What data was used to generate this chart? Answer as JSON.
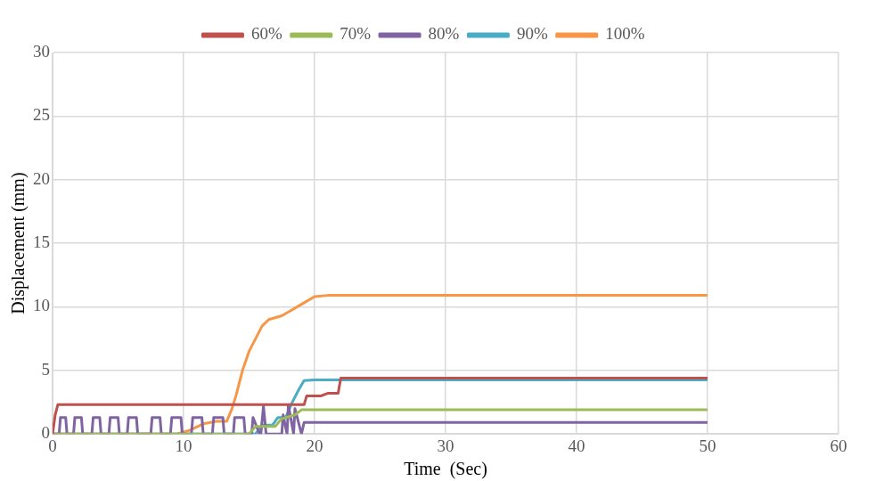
{
  "chart_data": {
    "type": "line",
    "xlabel": "Time  (Sec)",
    "ylabel": "Displacement (mm)",
    "xlim": [
      0,
      60
    ],
    "xticks": [
      0,
      10,
      20,
      30,
      40,
      50,
      60
    ],
    "ylim": [
      0,
      30
    ],
    "yticks": [
      0,
      5,
      10,
      15,
      20,
      25,
      30
    ],
    "grid": true,
    "legend": "top",
    "marker": "none",
    "line_style": "solid",
    "series": [
      {
        "name": "60%",
        "color": "#c0504d",
        "x": [
          0,
          0.2,
          0.4,
          5,
          10,
          15,
          19.2,
          19.4,
          20.5,
          21,
          21.5,
          21.8,
          22,
          50
        ],
        "values": [
          0,
          1.5,
          2.3,
          2.3,
          2.3,
          2.3,
          2.3,
          3,
          3,
          3.2,
          3.2,
          3.2,
          4.4,
          4.4
        ]
      },
      {
        "name": "70%",
        "color": "#9bbb59",
        "x": [
          0,
          15,
          15.5,
          17,
          17.5,
          18.5,
          19,
          50
        ],
        "values": [
          0,
          0,
          0.6,
          0.6,
          1.2,
          1.5,
          1.9,
          1.9
        ]
      },
      {
        "name": "80%",
        "color": "#8064a2",
        "x": [
          0,
          0.5,
          0.6,
          1,
          1.1,
          1.6,
          1.7,
          2.2,
          2.3,
          3,
          3.1,
          3.6,
          3.7,
          4.3,
          4.4,
          5,
          5.1,
          5.7,
          5.8,
          6.4,
          6.5,
          7.5,
          7.6,
          8.2,
          8.3,
          9,
          9.1,
          9.8,
          9.9,
          10.6,
          10.7,
          11.4,
          11.5,
          12.2,
          12.3,
          13,
          13.1,
          13.8,
          13.9,
          14.6,
          14.7,
          15.2,
          15.3,
          15.8,
          15.9,
          16.1,
          16.3,
          17.5,
          17.6,
          17.9,
          18,
          18.4,
          18.5,
          19,
          19.2,
          50
        ],
        "values": [
          0,
          0,
          1.3,
          1.3,
          0,
          0,
          1.3,
          1.3,
          0,
          0,
          1.3,
          1.3,
          0,
          0,
          1.3,
          1.3,
          0,
          0,
          1.3,
          1.3,
          0,
          0,
          1.3,
          1.3,
          0,
          0,
          1.3,
          1.3,
          0,
          0,
          1.3,
          1.3,
          0,
          0,
          1.3,
          1.3,
          0,
          0,
          1.3,
          1.3,
          0,
          0,
          1.3,
          0,
          0,
          2.2,
          0,
          0,
          1.5,
          0,
          2.3,
          0,
          2,
          0,
          0.9,
          0.9
        ]
      },
      {
        "name": "90%",
        "color": "#4bacc6",
        "x": [
          0,
          15.5,
          16,
          16.8,
          17.2,
          17.8,
          18.3,
          18.8,
          19.2,
          20,
          50
        ],
        "values": [
          0,
          0,
          0.7,
          0.7,
          1.3,
          1.3,
          2.5,
          3.5,
          4.2,
          4.25,
          4.25
        ]
      },
      {
        "name": "100%",
        "color": "#f79646",
        "x": [
          0,
          9.5,
          10.5,
          11.5,
          12.5,
          13.3,
          13.7,
          14,
          14.5,
          15,
          15.5,
          16,
          16.5,
          17.5,
          18,
          19,
          20,
          21,
          50
        ],
        "values": [
          0,
          0,
          0.3,
          0.8,
          1,
          1,
          2,
          3,
          5,
          6.5,
          7.5,
          8.5,
          9,
          9.3,
          9.6,
          10.2,
          10.8,
          10.9,
          10.9
        ]
      }
    ]
  }
}
